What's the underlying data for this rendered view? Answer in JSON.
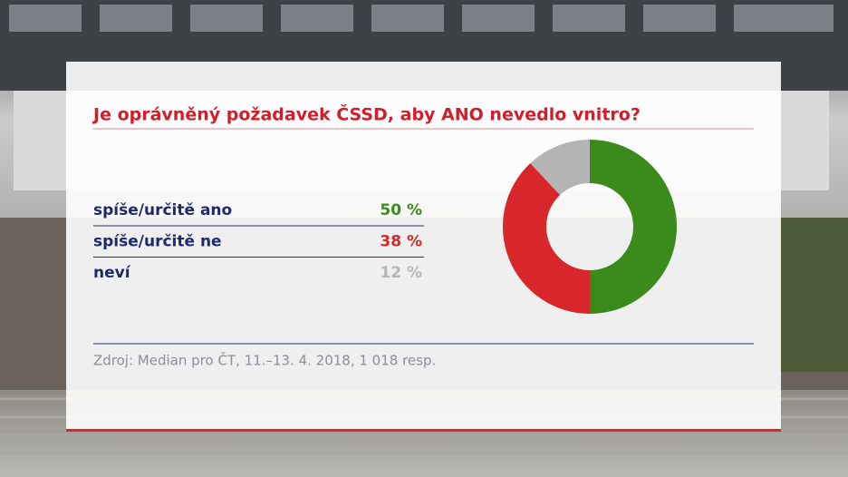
{
  "chart_data": {
    "type": "pie",
    "donut": true,
    "title": "Je oprávněný požadavek ČSSD, aby ANO nevedlo vnitro?",
    "categories": [
      "spíše/určitě ano",
      "spíše/určitě ne",
      "neví"
    ],
    "values": [
      50,
      38,
      12
    ],
    "value_labels": [
      "50 %",
      "38 %",
      "12 %"
    ],
    "colors": [
      "#3b8a1c",
      "#d8262b",
      "#b5b5b5"
    ],
    "source": "Zdroj: Median pro ČT, 11.–13. 4. 2018, 1 018 resp."
  }
}
